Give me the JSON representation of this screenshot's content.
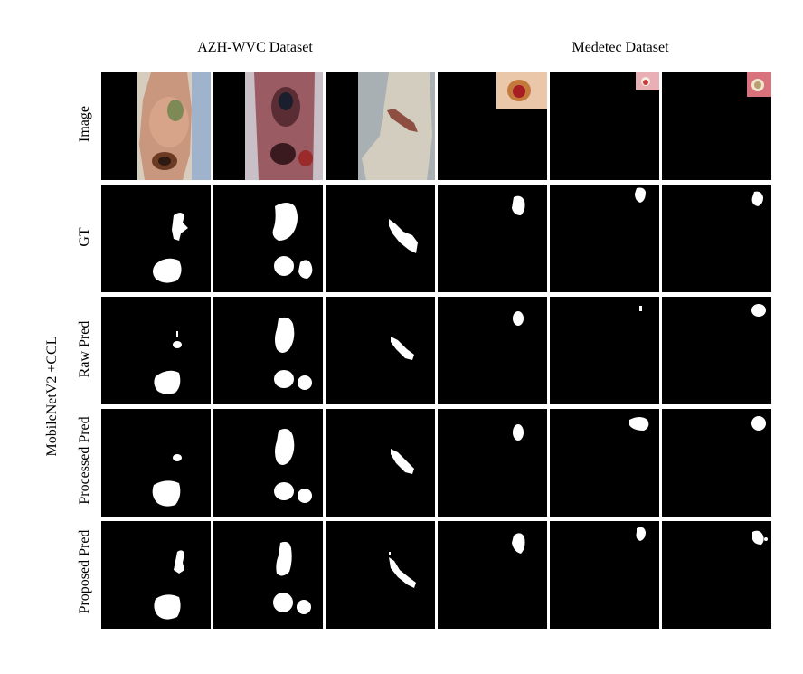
{
  "column_groups": [
    {
      "title": "AZH-WVC Dataset"
    },
    {
      "title": "Medetec Dataset"
    }
  ],
  "method_label": "MobileNetV2 +CCL",
  "rows": [
    {
      "label": "Image"
    },
    {
      "label": "GT"
    },
    {
      "label": "Raw Pred"
    },
    {
      "label": "Processed Pred"
    },
    {
      "label": "Proposed Pred"
    }
  ],
  "colors": {
    "mask_background": "#000000",
    "mask_foreground": "#ffffff",
    "separator": "#ffffff"
  }
}
